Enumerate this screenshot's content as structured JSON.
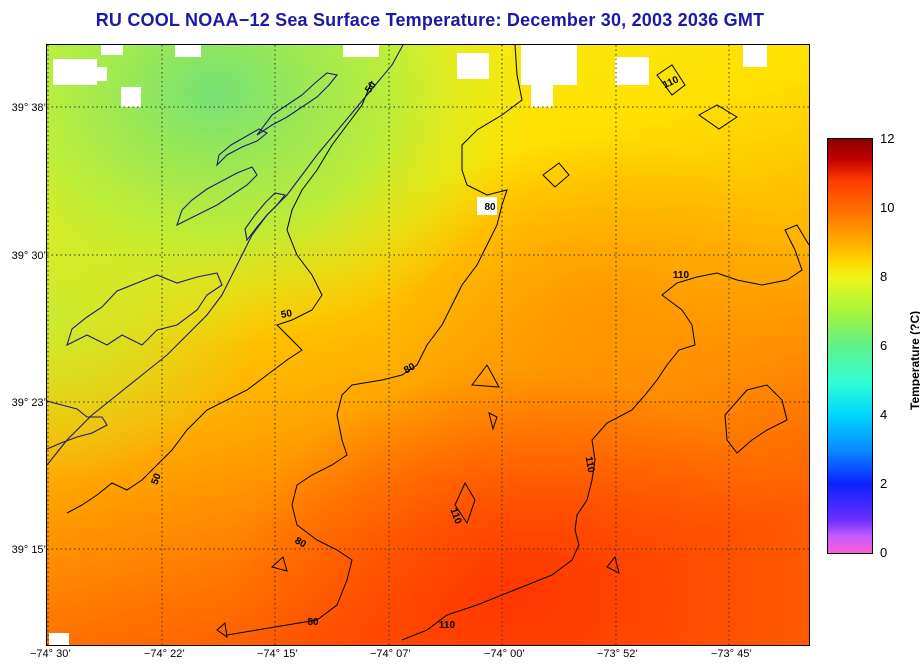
{
  "title": "RU COOL  NOAA−12  Sea Surface Temperature:  December 30, 2003 2036 GMT",
  "lat_labels": [
    "39° 38’",
    "39° 30’",
    "39° 23’",
    "39° 15’"
  ],
  "lon_labels": [
    "−74° 30’",
    "−74° 22’",
    "−74° 15’",
    "−74° 07’",
    "−74° 00’",
    "−73° 52’",
    "−73° 45’"
  ],
  "colorbar": {
    "label": "Temperature (?C)",
    "ticks": [
      "12",
      "10",
      "8",
      "6",
      "4",
      "2",
      "0"
    ],
    "min": 0,
    "max": 12
  },
  "contour_labels": [
    "50",
    "50",
    "50",
    "80",
    "80",
    "80",
    "80",
    "110",
    "110",
    "110",
    "110",
    "110"
  ],
  "colors": {
    "title": "#1a1aa6",
    "land_cool": "#8ee86a",
    "sea_warm": "#ff7a00",
    "cloud": "#ffffff",
    "contour": "#000000"
  }
}
